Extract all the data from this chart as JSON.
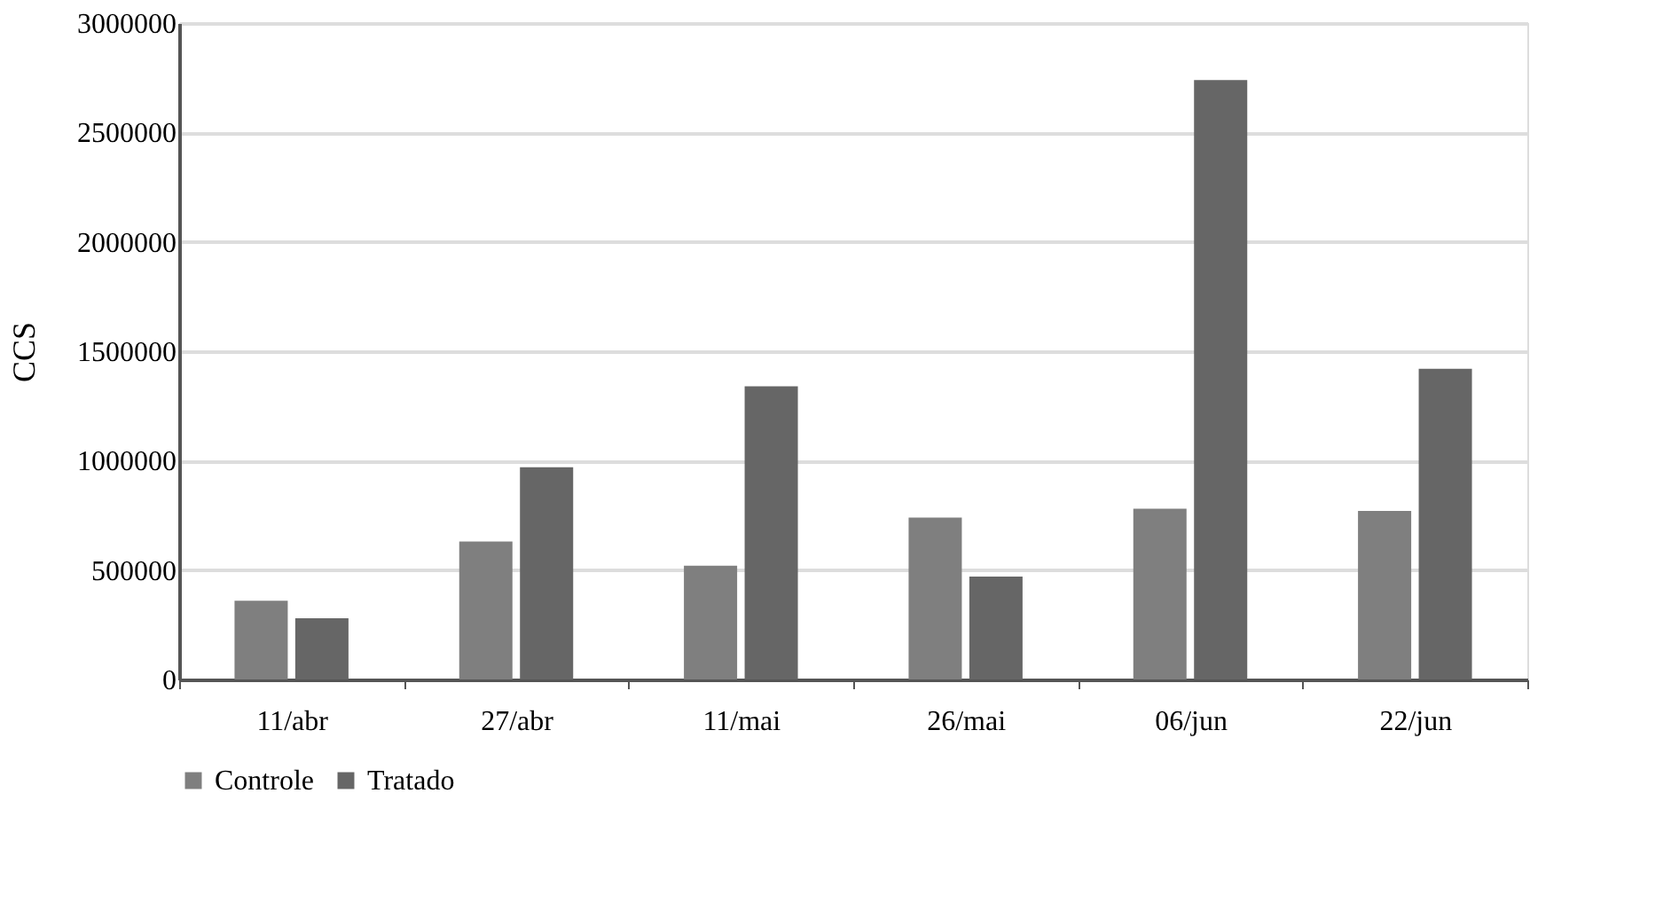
{
  "chart_data": {
    "type": "bar",
    "ylabel": "CCS",
    "categories": [
      "11/abr",
      "27/abr",
      "11/mai",
      "26/mai",
      "06/jun",
      "22/jun"
    ],
    "series": [
      {
        "name": "Controle",
        "color": "#7f7f7f",
        "values": [
          360000,
          630000,
          520000,
          740000,
          780000,
          770000
        ]
      },
      {
        "name": "Tratado",
        "color": "#666666",
        "values": [
          280000,
          970000,
          1340000,
          470000,
          2740000,
          1420000
        ]
      }
    ],
    "ylim": [
      0,
      3000000
    ],
    "yticks": [
      0,
      500000,
      1000000,
      1500000,
      2000000,
      2500000,
      3000000
    ],
    "grid": "y",
    "legend": "bottom"
  }
}
